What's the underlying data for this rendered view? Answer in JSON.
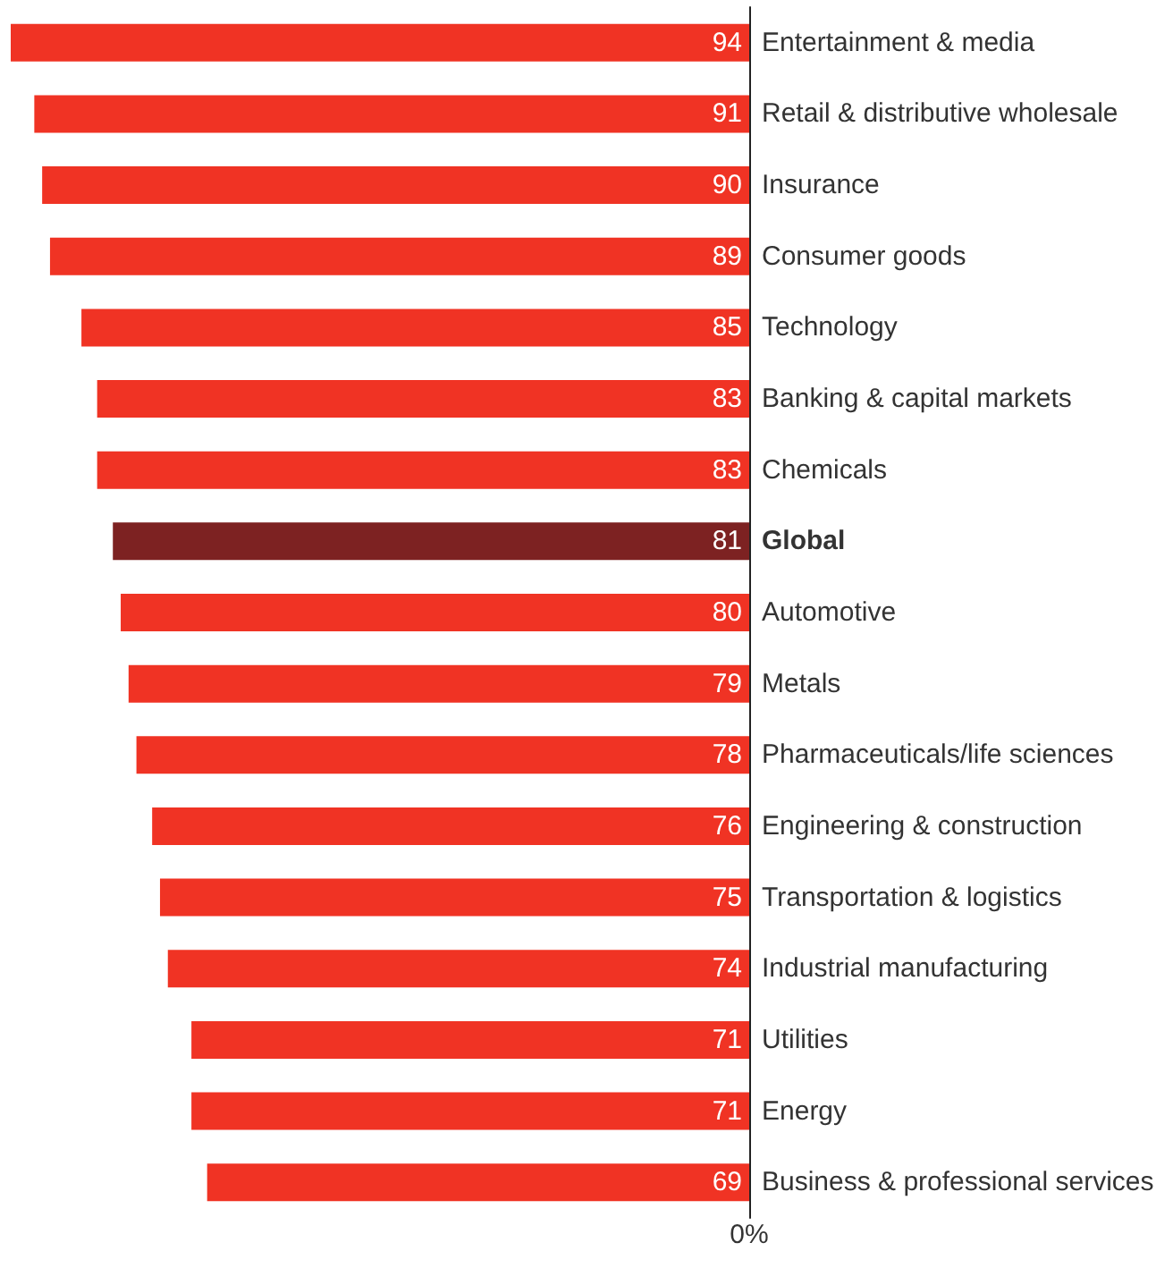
{
  "chart_data": {
    "type": "bar",
    "orientation": "horizontal",
    "categories": [
      "Entertainment & media",
      "Retail & distributive wholesale",
      "Insurance",
      "Consumer goods",
      "Technology",
      "Banking & capital markets",
      "Chemicals",
      "Global",
      "Automotive",
      "Metals",
      "Pharmaceuticals/life sciences",
      "Engineering & construction",
      "Transportation & logistics",
      "Industrial manufacturing",
      "Utilities",
      "Energy",
      "Business & professional services"
    ],
    "values": [
      94,
      91,
      90,
      89,
      85,
      83,
      83,
      81,
      80,
      79,
      78,
      76,
      75,
      74,
      71,
      71,
      69
    ],
    "colors": [
      "#f03324",
      "#f03324",
      "#f03324",
      "#f03324",
      "#f03324",
      "#f03324",
      "#f03324",
      "#7d2222",
      "#f03324",
      "#f03324",
      "#f03324",
      "#f03324",
      "#f03324",
      "#f03324",
      "#f03324",
      "#f03324",
      "#f03324"
    ],
    "xlim": [
      94,
      0
    ],
    "annotations": [
      "0%"
    ],
    "data_labels": true,
    "grid": false
  }
}
